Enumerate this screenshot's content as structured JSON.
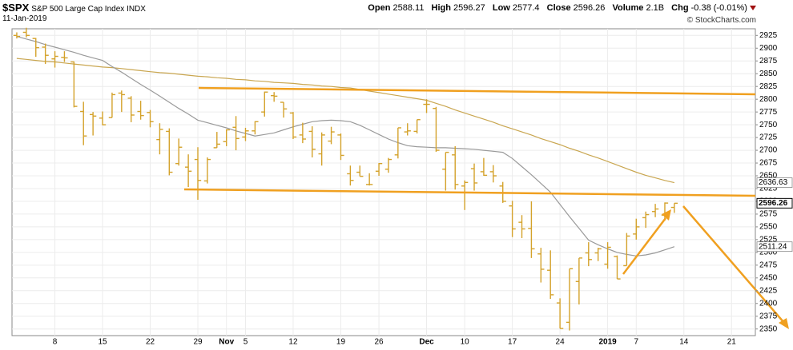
{
  "chart_data": {
    "type": "ohlc",
    "title": "$SPX",
    "subtitle": "S&P 500 Large Cap Index INDX",
    "date": "11-Jan-2019",
    "stat_labels": [
      "Open",
      "High",
      "Low",
      "Close",
      "Volume",
      "Chg"
    ],
    "volume": "2.1B",
    "change": "-0.38 (-0.01%)",
    "credit": "© StockCharts.com",
    "color": "#d4a22b",
    "categories": [
      null,
      null,
      null,
      null,
      "8",
      null,
      null,
      null,
      null,
      "15",
      null,
      null,
      null,
      null,
      "22",
      null,
      null,
      null,
      null,
      "29",
      null,
      null,
      "Nov",
      null,
      "5",
      null,
      null,
      null,
      null,
      "12",
      null,
      null,
      null,
      null,
      "19",
      null,
      null,
      null,
      "26",
      null,
      null,
      null,
      null,
      "Dec",
      null,
      null,
      null,
      "10",
      null,
      null,
      null,
      null,
      "17",
      null,
      null,
      null,
      null,
      "24",
      null,
      null,
      null,
      null,
      "2019",
      null,
      null,
      "7",
      null,
      null,
      null,
      null,
      "14",
      null,
      null,
      null,
      null,
      "21",
      null,
      null
    ],
    "open": [
      2925,
      2931,
      2919,
      2902,
      2879,
      2882,
      2873,
      2776,
      2770,
      2763,
      2764,
      2812,
      2802,
      2776,
      2774,
      2721,
      2737,
      2674,
      2667,
      2682,
      2640,
      2705,
      2717,
      2745,
      2726,
      2738,
      2775,
      2807,
      2794,
      2773,
      2730,
      2737,
      2693,
      2718,
      2730,
      2654,
      2657,
      2633,
      2659,
      2663,
      2691,
      2736,
      2737,
      2790,
      2782,
      2663,
      2691,
      2630,
      2664,
      2658,
      2658,
      2630,
      2591,
      2559,
      2547,
      2497,
      2465,
      2401,
      2363,
      2443,
      2499,
      2499,
      2477,
      2492,
      2474,
      2536,
      2568,
      2580,
      2573,
      2588.11,
      null,
      null,
      null,
      null,
      null,
      null,
      null,
      null
    ],
    "high": [
      2931,
      2940,
      2920,
      2909,
      2894,
      2894,
      2874,
      2795,
      2775,
      2776,
      2813,
      2817,
      2806,
      2797,
      2779,
      2753,
      2743,
      2723,
      2692,
      2706,
      2686,
      2736,
      2741,
      2767,
      2744,
      2757,
      2815,
      2814,
      2794,
      2775,
      2754,
      2747,
      2735,
      2746,
      2733,
      2670,
      2670,
      2655,
      2675,
      2685,
      2744,
      2753,
      2760,
      2800,
      2785,
      2696,
      2708,
      2641,
      2674,
      2685,
      2671,
      2638,
      2601,
      2573,
      2600,
      2509,
      2504,
      2410,
      2468,
      2489,
      2520,
      2509,
      2520,
      2494,
      2538,
      2566,
      2580,
      2595,
      2597.82,
      2596.27,
      null,
      null,
      null,
      null,
      null,
      null,
      null,
      null
    ],
    "low": [
      2919,
      2921,
      2883,
      2869,
      2862,
      2873,
      2784,
      2710,
      2729,
      2749,
      2764,
      2775,
      2755,
      2760,
      2745,
      2692,
      2651,
      2670,
      2628,
      2603,
      2635,
      2705,
      2708,
      2700,
      2718,
      2731,
      2766,
      2795,
      2764,
      2722,
      2714,
      2686,
      2670,
      2712,
      2681,
      2631,
      2649,
      2631,
      2650,
      2656,
      2684,
      2729,
      2733,
      2773,
      2697,
      2621,
      2623,
      2583,
      2621,
      2650,
      2637,
      2597,
      2530,
      2528,
      2489,
      2441,
      2409,
      2351,
      2347,
      2398,
      2473,
      2483,
      2468,
      2448,
      2474,
      2525,
      2548,
      2569,
      2562,
      2577.4,
      null,
      null,
      null,
      null,
      null,
      null,
      null,
      null
    ],
    "close": [
      2923,
      2925,
      2901,
      2886,
      2884,
      2881,
      2786,
      2728,
      2767,
      2750,
      2809,
      2809,
      2769,
      2768,
      2756,
      2741,
      2657,
      2706,
      2659,
      2641,
      2682,
      2712,
      2740,
      2723,
      2738,
      2756,
      2814,
      2806,
      2781,
      2726,
      2722,
      2702,
      2730,
      2736,
      2690,
      2641,
      2649,
      2633,
      2674,
      2682,
      2744,
      2738,
      2760,
      2790,
      2700,
      2696,
      2633,
      2637,
      2636,
      2651,
      2650,
      2600,
      2546,
      2546,
      2507,
      2467,
      2417,
      2351,
      2468,
      2489,
      2486,
      2507,
      2510,
      2448,
      2532,
      2550,
      2574,
      2585,
      2596.64,
      2596.26,
      null,
      null,
      null,
      null,
      null,
      null,
      null,
      null
    ],
    "series": [
      {
        "color": "#c9a650",
        "values": [
          2880,
          2878,
          2876,
          2874,
          2873,
          2871,
          2869,
          2867,
          2865,
          2863,
          2862,
          2860,
          2858,
          2856,
          2854,
          2852,
          2851,
          2849,
          2847,
          2845,
          2844,
          2842,
          2841,
          2839,
          2838,
          2836,
          2835,
          2833,
          2832,
          2831,
          2829,
          2828,
          2826,
          2825,
          2823,
          2822,
          2819,
          2816,
          2813,
          2810,
          2807,
          2804,
          2801,
          2798,
          2792,
          2786,
          2779,
          2773,
          2767,
          2761,
          2755,
          2748,
          2742,
          2736,
          2730,
          2723,
          2717,
          2711,
          2704,
          2698,
          2691,
          2685,
          2678,
          2671,
          2664,
          2657,
          2651,
          2646,
          2641,
          2636.63,
          null,
          null,
          null,
          null,
          null,
          null,
          null,
          null
        ]
      },
      {
        "color": "#9a9a9a",
        "values": [
          2923,
          2918,
          2913,
          2907,
          2902,
          2897,
          2892,
          2886,
          2881,
          2876,
          2864,
          2853,
          2841,
          2829,
          2818,
          2806,
          2794,
          2782,
          2771,
          2759,
          2754,
          2749,
          2744,
          2738,
          2733,
          2728,
          2731,
          2734,
          2740,
          2746,
          2751,
          2756,
          2758,
          2759,
          2758,
          2756,
          2749,
          2740,
          2731,
          2722,
          2715,
          2709,
          2707,
          2706,
          2705,
          2705,
          2704,
          2703,
          2702,
          2700,
          2698,
          2696,
          2684,
          2668,
          2652,
          2635,
          2618,
          2594,
          2570,
          2547,
          2524,
          2515,
          2507,
          2500,
          2496,
          2493,
          2495,
          2499,
          2505,
          2511.24,
          null,
          null,
          null,
          null,
          null,
          null,
          null,
          null
        ]
      }
    ],
    "ylim": [
      2337,
      2938
    ],
    "yticks": [
      2350,
      2375,
      2400,
      2425,
      2450,
      2475,
      2500,
      2525,
      2550,
      2575,
      2600,
      2625,
      2650,
      2675,
      2700,
      2725,
      2750,
      2775,
      2800,
      2825,
      2850,
      2875,
      2900,
      2925
    ],
    "grid": true
  }
}
